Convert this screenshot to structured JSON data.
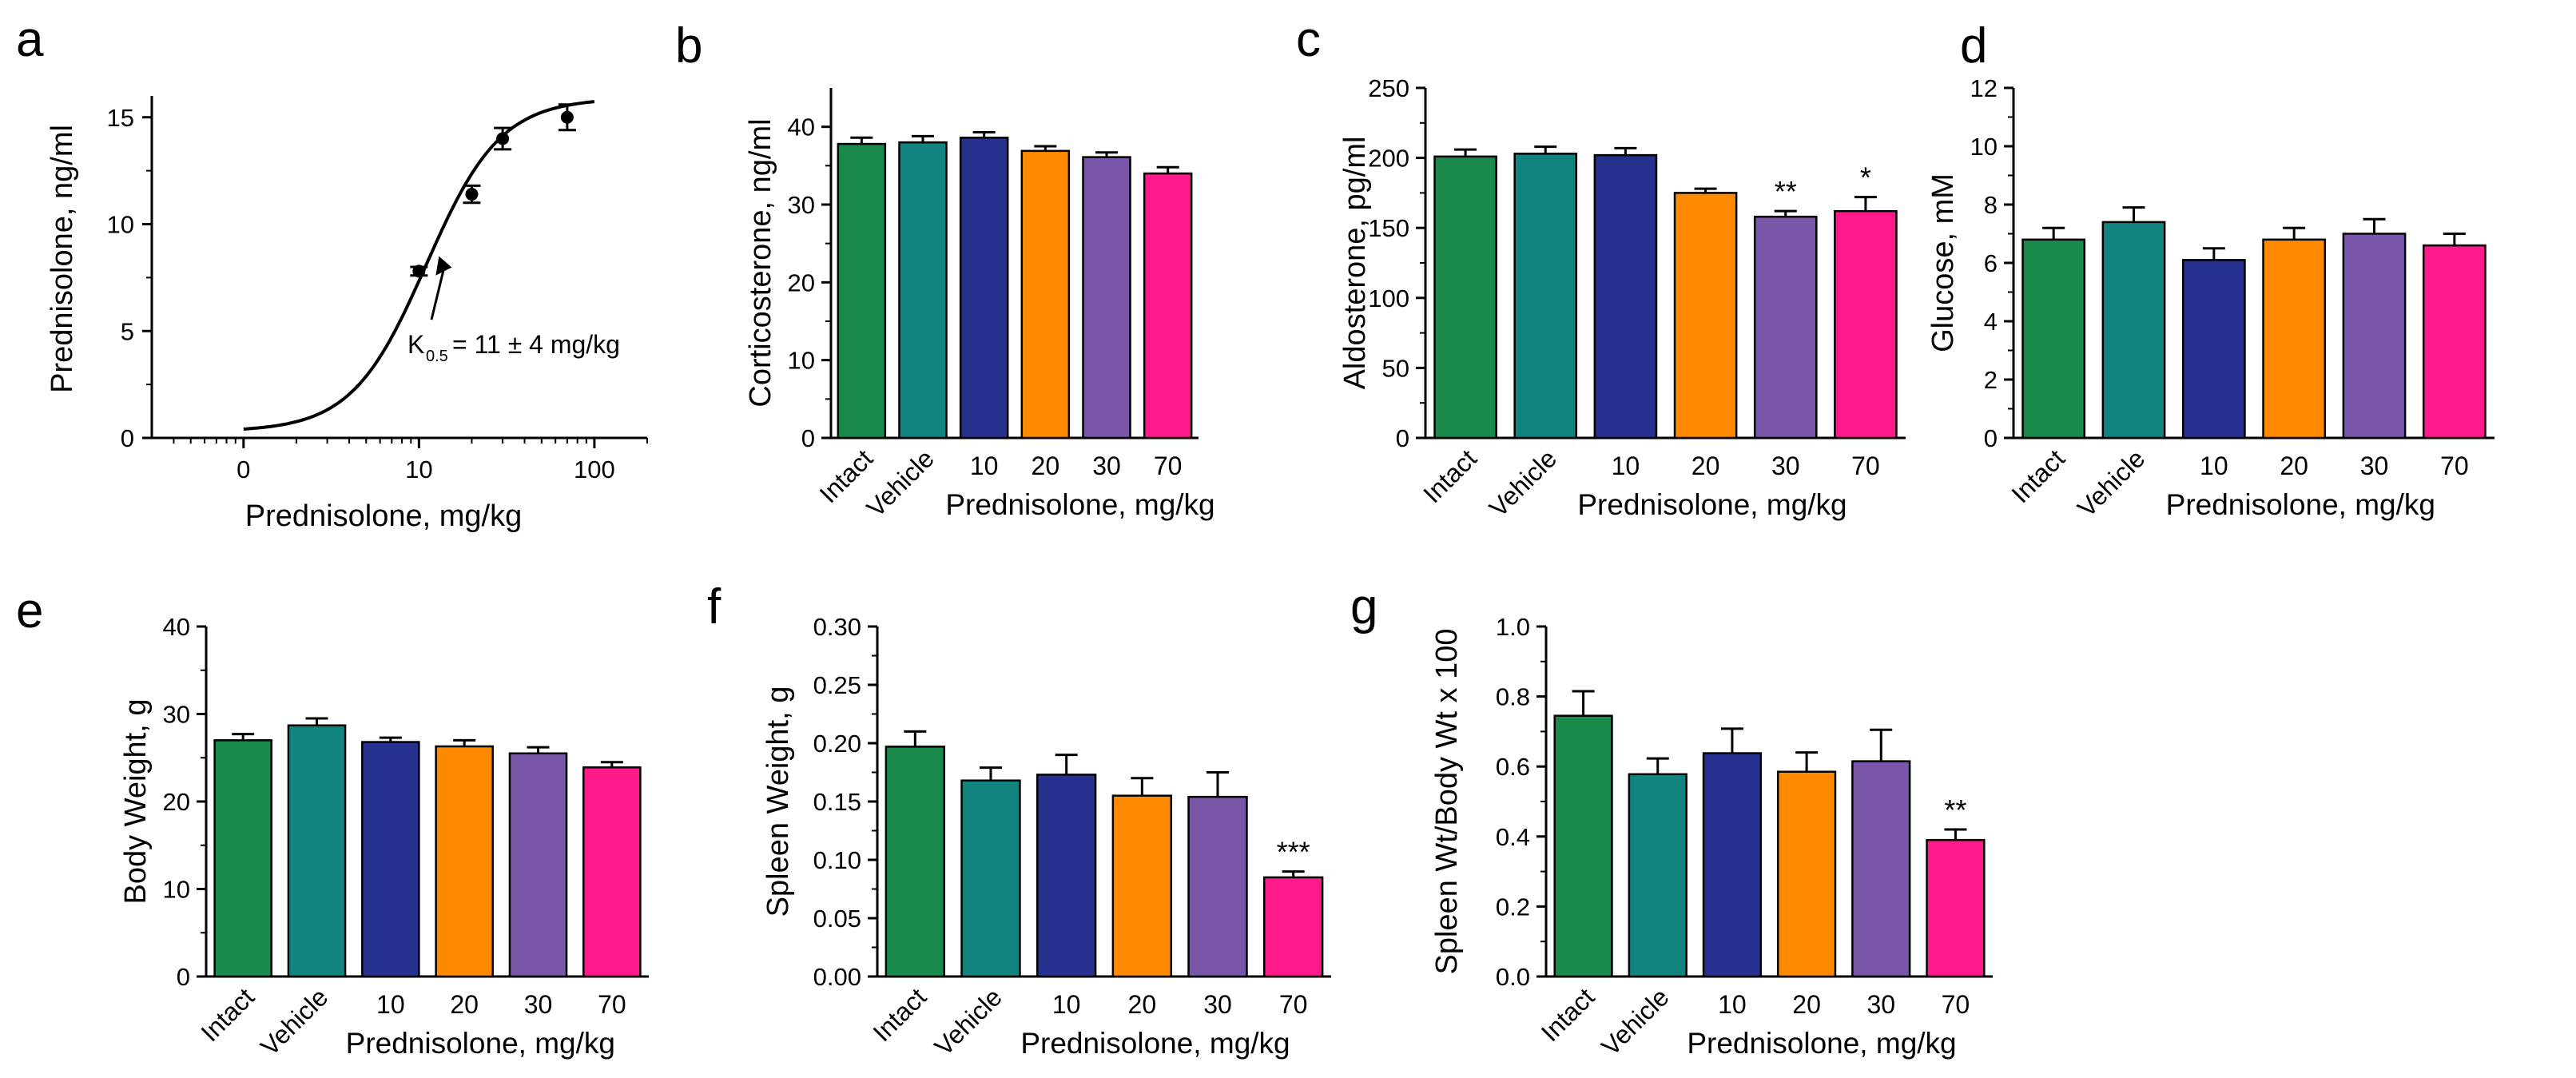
{
  "colors": {
    "Intact": "#1a8a4a",
    "Vehicle": "#128480",
    "10": "#26308e",
    "20": "#ff8a00",
    "30": "#7856a8",
    "70": "#ff1a8c",
    "axis": "#000000",
    "marker": "#000000"
  },
  "chart_data": [
    {
      "panel_letter": "a",
      "type": "scatter",
      "xscale": "log",
      "xlabel": "Prednisolone, mg/kg",
      "ylabel": "Prednisolone, ng/ml",
      "xlim": [
        0.3,
        200
      ],
      "ylim": [
        0,
        16
      ],
      "x_ticks": [
        {
          "label": "0",
          "at": 1
        },
        {
          "label": "10",
          "at": 10
        },
        {
          "label": "100",
          "at": 100
        }
      ],
      "y_ticks": [
        0,
        5,
        10,
        15
      ],
      "points": [
        {
          "x": 10,
          "y": 7.8,
          "err": 0.2
        },
        {
          "x": 20,
          "y": 11.4,
          "err": 0.4
        },
        {
          "x": 30,
          "y": 14.0,
          "err": 0.5
        },
        {
          "x": 70,
          "y": 15.0,
          "err": 0.6
        }
      ],
      "fit": {
        "type": "hill",
        "x_min": 1,
        "x_max": 100,
        "ymax": 15.9,
        "k_half": 11,
        "hill_n": 2.05,
        "baseline": 0.3
      },
      "annotation": {
        "prefix": "K",
        "subscript": "0.5",
        "text": " = 11 ± 4 mg/kg",
        "arrow_to": {
          "x": 13,
          "y": 8.5
        }
      }
    },
    {
      "panel_letter": "b",
      "type": "bar",
      "ylabel": "Corticosterone, ng/ml",
      "xlabel": "Prednisolone, mg/kg",
      "categories": [
        "Intact",
        "Vehicle",
        "10",
        "20",
        "30",
        "70"
      ],
      "rotated_categories": [
        "Intact",
        "Vehicle"
      ],
      "values": [
        37.8,
        38.0,
        38.6,
        36.9,
        36.1,
        34.0
      ],
      "errors": [
        0.8,
        0.8,
        0.7,
        0.6,
        0.6,
        0.8
      ],
      "significance": [
        "",
        "",
        "",
        "",
        "",
        ""
      ],
      "ylim": [
        0,
        45
      ],
      "y_ticks": [
        "0",
        "10",
        "20",
        "30",
        "40"
      ]
    },
    {
      "panel_letter": "c",
      "type": "bar",
      "ylabel": "Aldosterone, pg/ml",
      "xlabel": "Prednisolone, mg/kg",
      "categories": [
        "Intact",
        "Vehicle",
        "10",
        "20",
        "30",
        "70"
      ],
      "rotated_categories": [
        "Intact",
        "Vehicle"
      ],
      "values": [
        201,
        203,
        202,
        175,
        158,
        162
      ],
      "errors": [
        5,
        5,
        5,
        3,
        4,
        10
      ],
      "significance": [
        "",
        "",
        "",
        "",
        "**",
        "*"
      ],
      "ylim": [
        0,
        250
      ],
      "y_ticks": [
        "0",
        "50",
        "100",
        "150",
        "200",
        "250"
      ]
    },
    {
      "panel_letter": "d",
      "type": "bar",
      "ylabel": "Glucose, mM",
      "xlabel": "Prednisolone, mg/kg",
      "categories": [
        "Intact",
        "Vehicle",
        "10",
        "20",
        "30",
        "70"
      ],
      "rotated_categories": [
        "Intact",
        "Vehicle"
      ],
      "values": [
        6.8,
        7.4,
        6.1,
        6.8,
        7.0,
        6.6
      ],
      "errors": [
        0.4,
        0.5,
        0.4,
        0.4,
        0.5,
        0.4
      ],
      "significance": [
        "",
        "",
        "",
        "",
        "",
        ""
      ],
      "ylim": [
        0,
        12
      ],
      "y_ticks": [
        "0",
        "2",
        "4",
        "6",
        "8",
        "10",
        "12"
      ]
    },
    {
      "panel_letter": "e",
      "type": "bar",
      "ylabel": "Body Weight, g",
      "xlabel": "Prednisolone, mg/kg",
      "categories": [
        "Intact",
        "Vehicle",
        "10",
        "20",
        "30",
        "70"
      ],
      "rotated_categories": [
        "Intact",
        "Vehicle"
      ],
      "values": [
        27.0,
        28.7,
        26.8,
        26.3,
        25.5,
        23.9
      ],
      "errors": [
        0.7,
        0.8,
        0.5,
        0.7,
        0.7,
        0.6
      ],
      "significance": [
        "",
        "",
        "",
        "",
        "",
        ""
      ],
      "ylim": [
        0,
        40
      ],
      "y_ticks": [
        "0",
        "10",
        "20",
        "30",
        "40"
      ]
    },
    {
      "panel_letter": "f",
      "type": "bar",
      "ylabel": "Spleen Weight, g",
      "xlabel": "Prednisolone, mg/kg",
      "categories": [
        "Intact",
        "Vehicle",
        "10",
        "20",
        "30",
        "70"
      ],
      "rotated_categories": [
        "Intact",
        "Vehicle"
      ],
      "values": [
        0.197,
        0.168,
        0.173,
        0.155,
        0.154,
        0.085
      ],
      "errors": [
        0.013,
        0.011,
        0.017,
        0.015,
        0.021,
        0.005
      ],
      "significance": [
        "",
        "",
        "",
        "",
        "",
        "***"
      ],
      "ylim": [
        0,
        0.3
      ],
      "y_ticks": [
        "0.00",
        "0.05",
        "0.10",
        "0.15",
        "0.20",
        "0.25",
        "0.30"
      ]
    },
    {
      "panel_letter": "g",
      "type": "bar",
      "ylabel": "Spleen Wt/Body Wt x 100",
      "xlabel": "Prednisolone, mg/kg",
      "categories": [
        "Intact",
        "Vehicle",
        "10",
        "20",
        "30",
        "70"
      ],
      "rotated_categories": [
        "Intact",
        "Vehicle"
      ],
      "values": [
        0.745,
        0.578,
        0.638,
        0.585,
        0.615,
        0.39
      ],
      "errors": [
        0.07,
        0.045,
        0.07,
        0.055,
        0.09,
        0.03
      ],
      "significance": [
        "",
        "",
        "",
        "",
        "",
        "**"
      ],
      "ylim": [
        0,
        1.0
      ],
      "y_ticks": [
        "0.0",
        "0.2",
        "0.4",
        "0.6",
        "0.8",
        "1.0"
      ]
    }
  ]
}
